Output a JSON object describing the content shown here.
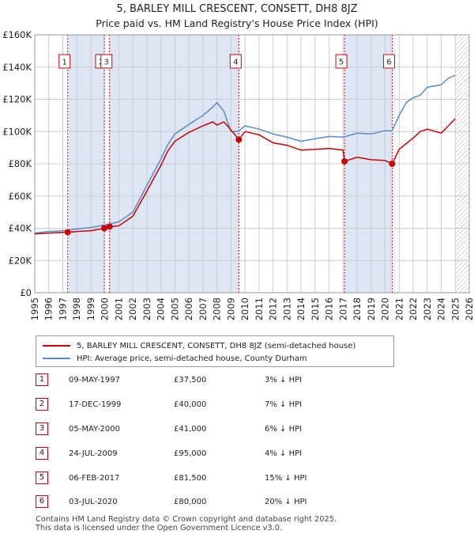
{
  "title": "5, BARLEY MILL CRESCENT, CONSETT, DH8 8JZ",
  "subtitle": "Price paid vs. HM Land Registry's House Price Index (HPI)",
  "colors": {
    "property": "#cc0000",
    "hpi": "#5b8ac6",
    "shade": "#dde6f5",
    "grid": "#cccccc"
  },
  "legend": {
    "property": "5, BARLEY MILL CRESCENT, CONSETT, DH8 8JZ (semi-detached house)",
    "hpi": "HPI: Average price, semi-detached house, County Durham"
  },
  "transactions": [
    {
      "num": "1",
      "date": "09-MAY-1997",
      "price": "£37,500",
      "hpi": "3% ↓ HPI"
    },
    {
      "num": "2",
      "date": "17-DEC-1999",
      "price": "£40,000",
      "hpi": "7% ↓ HPI"
    },
    {
      "num": "3",
      "date": "05-MAY-2000",
      "price": "£41,000",
      "hpi": "6% ↓ HPI"
    },
    {
      "num": "4",
      "date": "24-JUL-2009",
      "price": "£95,000",
      "hpi": "4% ↓ HPI"
    },
    {
      "num": "5",
      "date": "06-FEB-2017",
      "price": "£81,500",
      "hpi": "15% ↓ HPI"
    },
    {
      "num": "6",
      "date": "03-JUL-2020",
      "price": "£80,000",
      "hpi": "20% ↓ HPI"
    }
  ],
  "footer": {
    "line1": "Contains HM Land Registry data © Crown copyright and database right 2025.",
    "line2": "This data is licensed under the Open Government Licence v3.0."
  },
  "chart_data": {
    "type": "line",
    "title": "5, BARLEY MILL CRESCENT, CONSETT, DH8 8JZ",
    "subtitle": "Price paid vs. HM Land Registry's House Price Index (HPI)",
    "xlim": [
      1995,
      2026
    ],
    "ylim": [
      0,
      160000
    ],
    "x_ticks": [
      1995,
      1996,
      1997,
      1998,
      1999,
      2000,
      2001,
      2002,
      2003,
      2004,
      2005,
      2006,
      2007,
      2008,
      2009,
      2010,
      2011,
      2012,
      2013,
      2014,
      2015,
      2016,
      2017,
      2018,
      2019,
      2020,
      2021,
      2022,
      2023,
      2024,
      2025,
      2026
    ],
    "y_ticks": [
      0,
      20000,
      40000,
      60000,
      80000,
      100000,
      120000,
      140000,
      160000
    ],
    "y_tick_labels": [
      "£0",
      "£20K",
      "£40K",
      "£60K",
      "£80K",
      "£100K",
      "£120K",
      "£140K",
      "£160K"
    ],
    "grid": true,
    "legend_position": "below-chart",
    "series": [
      {
        "name": "5, BARLEY MILL CRESCENT, CONSETT, DH8 8JZ (semi-detached house)",
        "x": [
          1995,
          1996,
          1997,
          1997.35,
          1998,
          1999,
          1999.96,
          2000,
          2000.34,
          2001,
          2002,
          2003,
          2004,
          2004.5,
          2005,
          2006,
          2007,
          2007.7,
          2008,
          2008.5,
          2009,
          2009.56,
          2010,
          2011,
          2012,
          2013,
          2014,
          2015,
          2016,
          2017.0,
          2017.1,
          2018,
          2019,
          2020,
          2020.5,
          2021,
          2022,
          2022.5,
          2023,
          2024,
          2024.5,
          2025.0
        ],
        "values": [
          36500,
          37000,
          37500,
          37500,
          38000,
          38500,
          40000,
          40000,
          41000,
          41500,
          47500,
          63000,
          79000,
          88000,
          94000,
          99500,
          103500,
          106000,
          104000,
          106000,
          101000,
          95000,
          100000,
          98000,
          93000,
          91500,
          88500,
          89000,
          89500,
          88500,
          81500,
          84000,
          82500,
          82000,
          80000,
          89000,
          96000,
          100000,
          101500,
          99000,
          103500,
          108000
        ]
      },
      {
        "name": "HPI: Average price, semi-detached house, County Durham",
        "x": [
          1995,
          1996,
          1997,
          1998,
          1999,
          2000,
          2001,
          2002,
          2003,
          2004,
          2004.5,
          2005,
          2006,
          2007,
          2007.8,
          2008,
          2008.5,
          2009,
          2009.5,
          2010,
          2011,
          2012,
          2013,
          2014,
          2015,
          2016,
          2017,
          2018,
          2019,
          2020,
          2020.5,
          2021,
          2021.5,
          2022,
          2022.5,
          2023,
          2024,
          2024.5,
          2025.0
        ],
        "values": [
          37000,
          38000,
          38500,
          39500,
          40500,
          42000,
          44000,
          50000,
          66500,
          83000,
          92000,
          98500,
          104500,
          110000,
          116000,
          118000,
          112500,
          100000,
          100000,
          103500,
          101500,
          98500,
          96500,
          94000,
          95500,
          97000,
          96500,
          99000,
          98500,
          100500,
          100500,
          110000,
          118000,
          121000,
          122500,
          127500,
          129000,
          133000,
          135000
        ]
      }
    ],
    "sales": [
      {
        "label": "1",
        "x": 1997.35,
        "value": 37500
      },
      {
        "label": "2",
        "x": 1999.96,
        "value": 40000
      },
      {
        "label": "3",
        "x": 2000.34,
        "value": 41000
      },
      {
        "label": "4",
        "x": 2009.56,
        "value": 95000
      },
      {
        "label": "5",
        "x": 2017.1,
        "value": 81500
      },
      {
        "label": "6",
        "x": 2020.5,
        "value": 80000
      }
    ],
    "shaded_spans": [
      [
        1997.35,
        1999.96
      ],
      [
        2000.34,
        2009.56
      ],
      [
        2017.1,
        2020.5
      ]
    ],
    "hatched_after": 2025.0
  }
}
